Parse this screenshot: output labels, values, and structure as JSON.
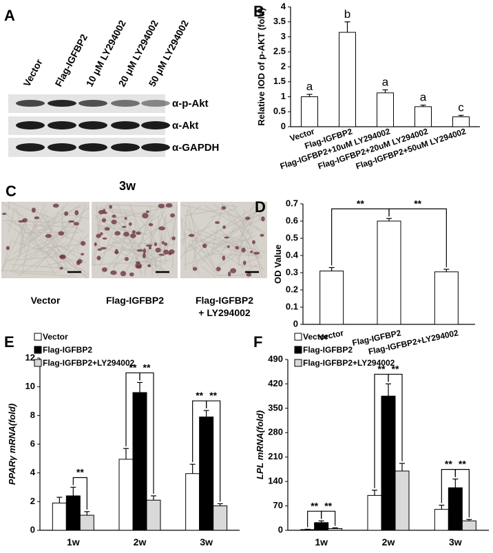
{
  "blot": {
    "label": "A",
    "lanes": [
      "Vector",
      "Flag-IGFBP2",
      "10 μM LY294002",
      "20 μM LY294002",
      "50 μM LY294002"
    ],
    "rows": [
      "α-p-Akt",
      "α-Akt",
      "α-GAPDH"
    ]
  },
  "micrographs": {
    "label": "C",
    "title": "3w",
    "captions": [
      [
        "Vector"
      ],
      [
        "Flag-IGFBP2"
      ],
      [
        "Flag-IGFBP2",
        "+ LY294002"
      ]
    ]
  },
  "chart_data": [
    {
      "type": "bar",
      "panel": "B",
      "ylabel": "Relative IOD of p-AKT (fold)",
      "categories": [
        "Vector",
        "Flag-IGFBP2",
        "Flag-IGFBP2+10uM LY294002",
        "Flag-IGFBP2+20uM LY294002",
        "Flag-IGFBP2+50uM LY294002"
      ],
      "values": [
        1.0,
        3.15,
        1.13,
        0.67,
        0.33
      ],
      "errors": [
        0.08,
        0.35,
        0.1,
        0.05,
        0.05
      ],
      "annotations": [
        "a",
        "b",
        "a",
        "a",
        "c"
      ],
      "color": "#ffffff",
      "ylim": [
        0,
        4
      ],
      "yticks": [
        0,
        0.5,
        1,
        1.5,
        2,
        2.5,
        3,
        3.5,
        4
      ]
    },
    {
      "type": "bar",
      "panel": "D",
      "ylabel": "OD Value",
      "categories": [
        "Vector",
        "Flag-IGFBP2",
        "Flag-IGFBP2+LY294002"
      ],
      "values": [
        0.31,
        0.6,
        0.305
      ],
      "errors": [
        0.02,
        0.015,
        0.015
      ],
      "color": "#ffffff",
      "significance": [
        "**",
        "**"
      ],
      "ylim": [
        0,
        0.7
      ],
      "yticks": [
        0,
        0.1,
        0.2,
        0.3,
        0.4,
        0.5,
        0.6,
        0.7
      ]
    },
    {
      "type": "bar",
      "panel": "E",
      "ylabel": "PPARγ mRNA(fold)",
      "legend": "upper left",
      "categories": [
        "1w",
        "2w",
        "3w"
      ],
      "series": [
        {
          "name": "Vector",
          "color": "#ffffff",
          "values": [
            1.9,
            4.95,
            3.95
          ],
          "errors": [
            0.4,
            0.75,
            0.65
          ]
        },
        {
          "name": "Flag-IGFBP2",
          "color": "#000000",
          "values": [
            2.4,
            9.6,
            7.9
          ],
          "errors": [
            0.6,
            0.7,
            0.45
          ]
        },
        {
          "name": "Flag-IGFBP2+LY294002",
          "color": "#d9d9d9",
          "values": [
            1.05,
            2.1,
            1.7
          ],
          "errors": [
            0.25,
            0.3,
            0.15
          ]
        }
      ],
      "significance": [
        "**",
        "**",
        "**",
        "**",
        "**"
      ],
      "ylim": [
        0,
        12
      ],
      "yticks": [
        0,
        2,
        4,
        6,
        8,
        10,
        12
      ]
    },
    {
      "type": "bar",
      "panel": "F",
      "ylabel": "LPL mRNA(fold)",
      "legend": "upper left",
      "categories": [
        "1w",
        "2w",
        "3w"
      ],
      "series": [
        {
          "name": "Vector",
          "color": "#ffffff",
          "values": [
            2,
            100,
            60
          ],
          "errors": [
            1,
            15,
            12
          ]
        },
        {
          "name": "Flag-IGFBP2",
          "color": "#000000",
          "values": [
            22,
            385,
            122
          ],
          "errors": [
            5,
            35,
            25
          ]
        },
        {
          "name": "Flag-IGFBP2+LY294002",
          "color": "#d9d9d9",
          "values": [
            5,
            170,
            27
          ],
          "errors": [
            2,
            22,
            4
          ]
        }
      ],
      "significance": [
        "**",
        "**",
        "**",
        "**",
        "**",
        "**"
      ],
      "ylim": [
        0,
        490
      ],
      "yticks": [
        0,
        70,
        140,
        210,
        280,
        350,
        420,
        490
      ]
    }
  ]
}
